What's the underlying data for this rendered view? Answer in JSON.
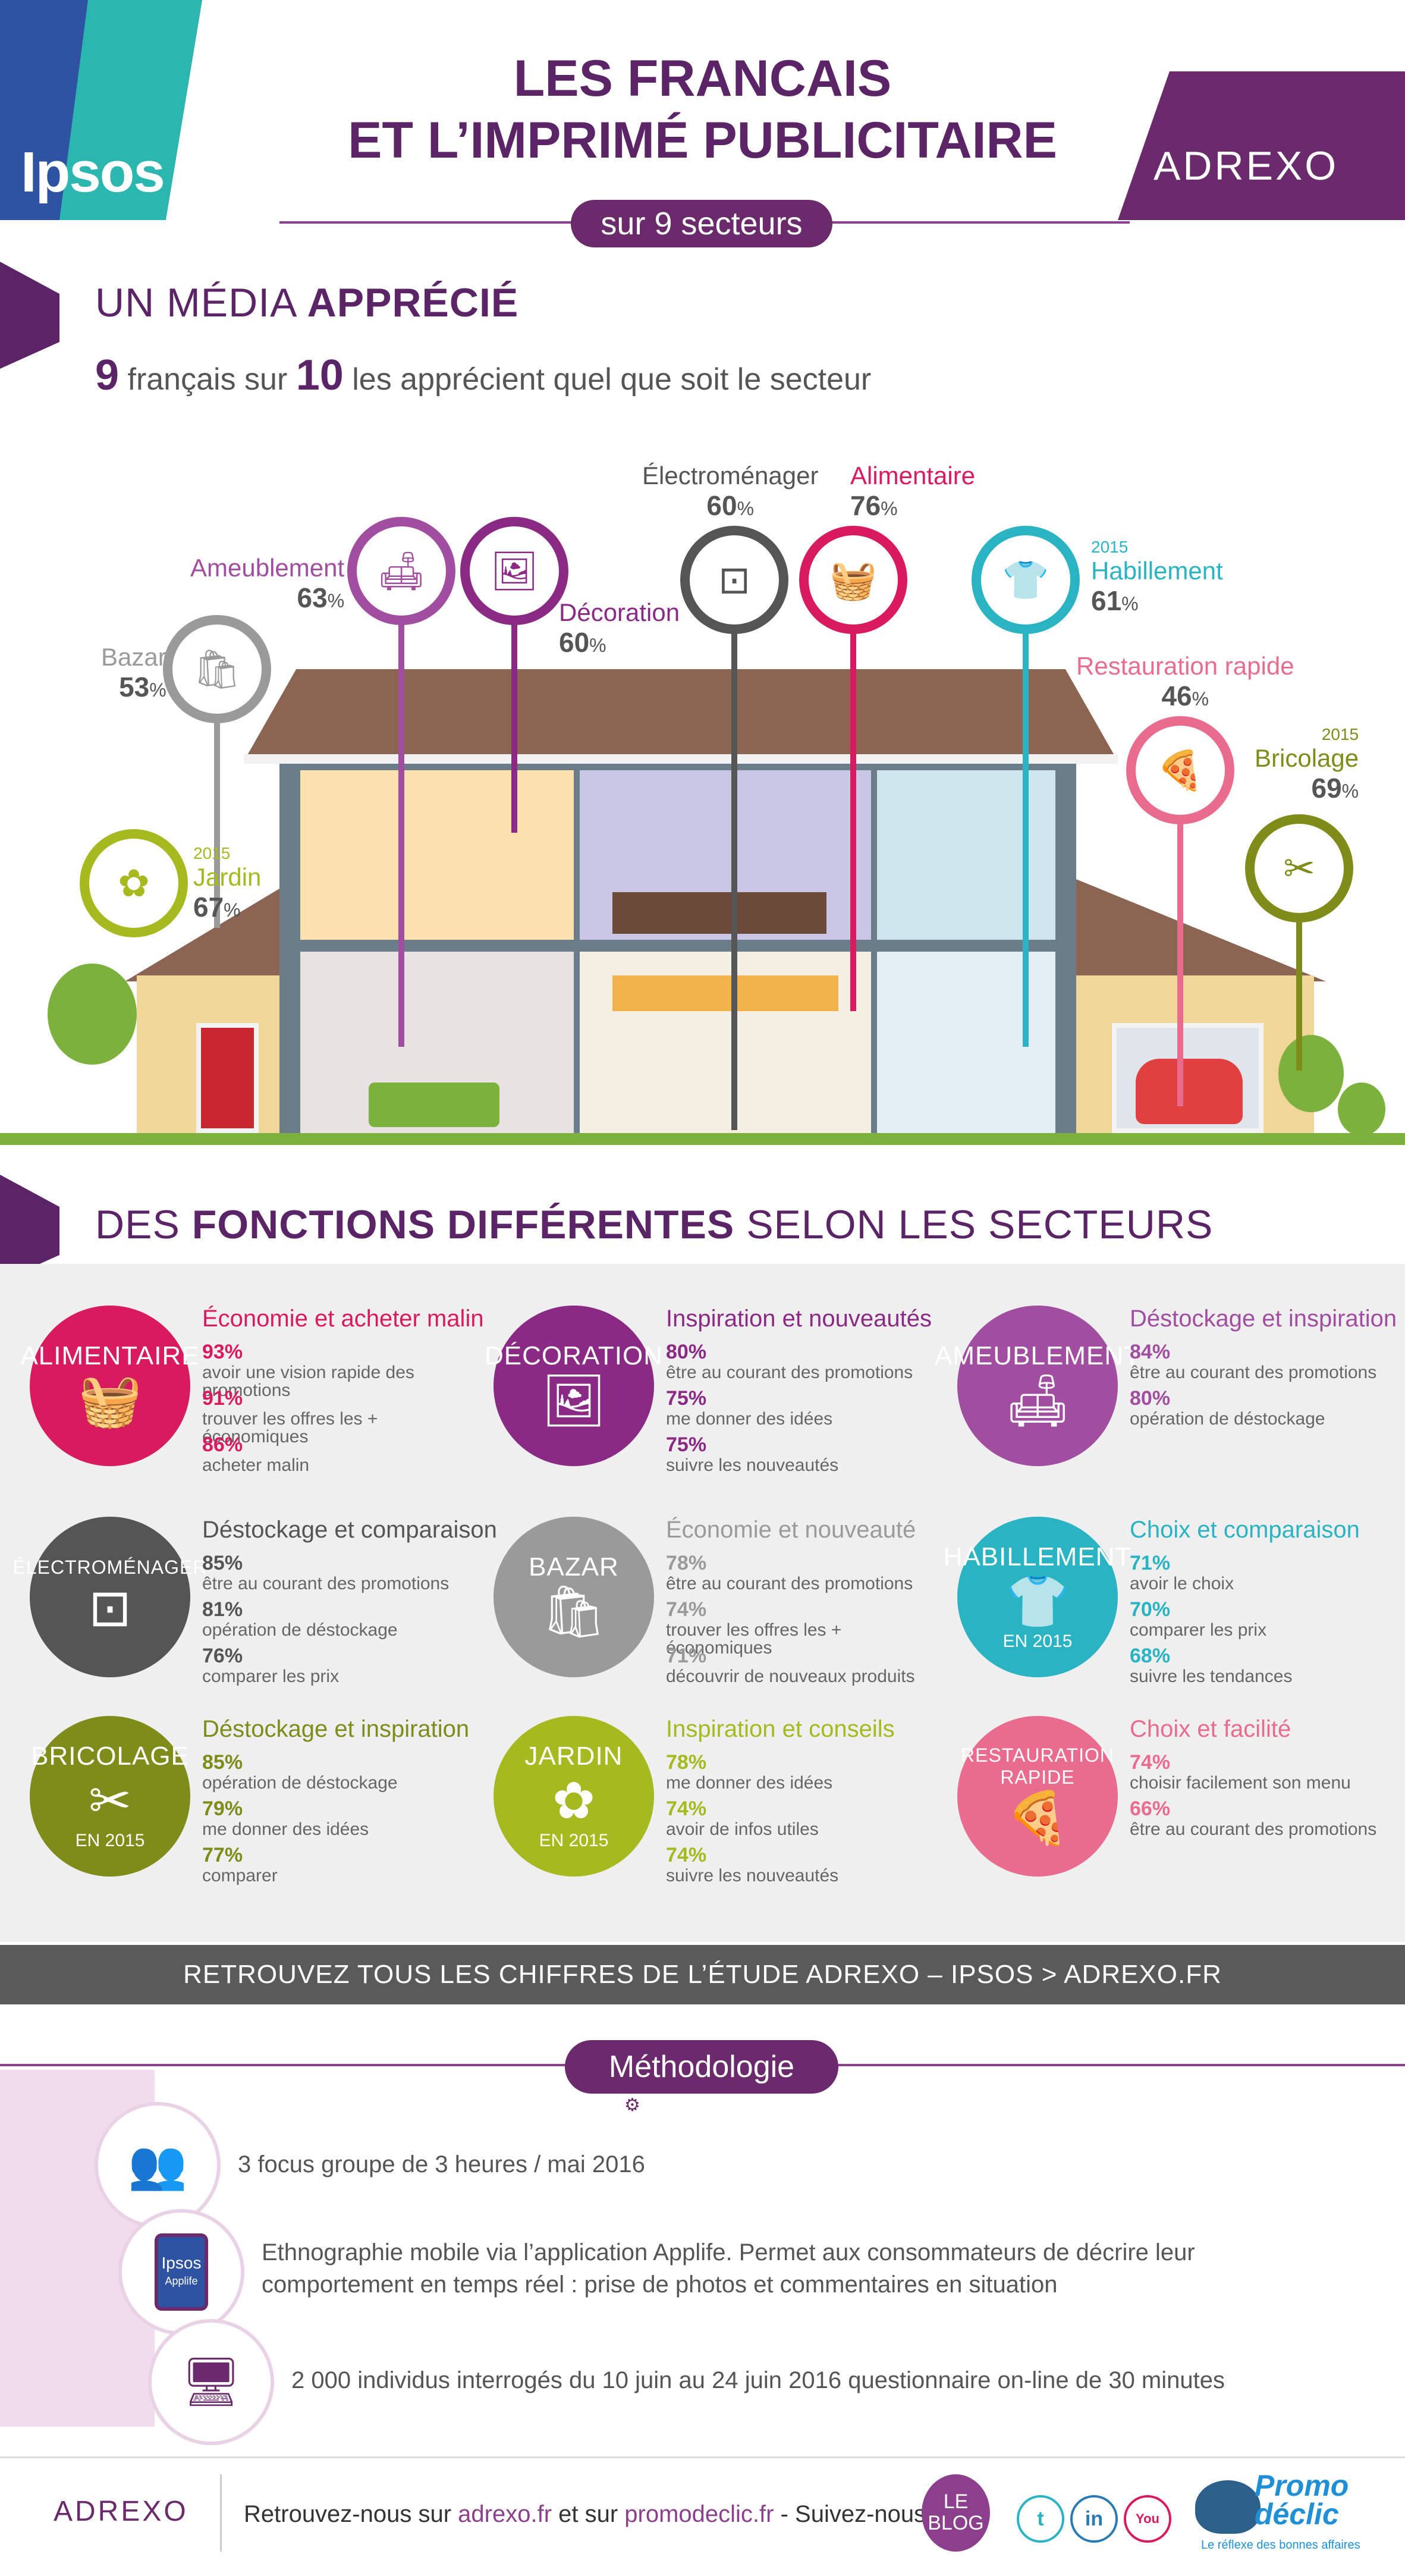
{
  "header": {
    "ipsos_logo": "Ipsos",
    "title_line1": "LES FRANCAIS",
    "title_line2": "ET L’IMPRIMÉ PUBLICITAIRE",
    "subtitle": "sur 9 secteurs",
    "adrexo_logo": "ADREXO"
  },
  "section1": {
    "title_plain": "UN MÉDIA ",
    "title_bold": "APPRÉCIÉ",
    "lead_n1": "9",
    "lead_t1": " français sur ",
    "lead_n2": "10",
    "lead_t2": " les apprécient quel que soit le secteur"
  },
  "house_sectors": [
    {
      "id": "bazar",
      "year": "",
      "name": "Bazar",
      "pct": "53",
      "color": "#9a9a9a",
      "icon": "bag-icon",
      "glyph": "🛍"
    },
    {
      "id": "ameublement",
      "year": "",
      "name": "Ameublement",
      "pct": "63",
      "color": "#a24ea0",
      "icon": "armchair-icon",
      "glyph": "🛋"
    },
    {
      "id": "decoration",
      "year": "",
      "name": "Décoration",
      "pct": "60",
      "color": "#8a2a84",
      "icon": "frame-icon",
      "glyph": "🖼"
    },
    {
      "id": "electromenager",
      "year": "",
      "name": "Électroménager",
      "pct": "60",
      "color": "#555555",
      "icon": "washing-machine-icon",
      "glyph": "⊡"
    },
    {
      "id": "alimentaire",
      "year": "",
      "name": "Alimentaire",
      "pct": "76",
      "color": "#d91a5e",
      "icon": "basket-icon",
      "glyph": "🧺"
    },
    {
      "id": "habillement",
      "year": "2015",
      "name": "Habillement",
      "pct": "61",
      "color": "#2ab3c3",
      "icon": "tshirt-icon",
      "glyph": "👕"
    },
    {
      "id": "restauration",
      "year": "",
      "name": "Restauration rapide",
      "pct": "46",
      "color": "#e96c8f",
      "icon": "pizza-icon",
      "glyph": "🍕"
    },
    {
      "id": "bricolage",
      "year": "2015",
      "name": "Bricolage",
      "pct": "69",
      "color": "#7f8c1a",
      "icon": "tools-icon",
      "glyph": "✂"
    },
    {
      "id": "jardin",
      "year": "2015",
      "name": "Jardin",
      "pct": "67",
      "color": "#a6b91f",
      "icon": "flower-icon",
      "glyph": "✿"
    }
  ],
  "section2": {
    "title_plain1": "DES ",
    "title_bold": "FONCTIONS DIFFÉRENTES",
    "title_plain2": " SELON LES SECTEURS"
  },
  "functions": [
    {
      "id": "alimentaire",
      "circle": "ALIMENTAIRE",
      "year": "",
      "color": "#d91a5e",
      "icon": "basket-icon",
      "glyph": "🧺",
      "title": "Économie et acheter malin",
      "stats": [
        {
          "pct": "93%",
          "label": "avoir une vision rapide des promotions"
        },
        {
          "pct": "91%",
          "label": "trouver les offres les + économiques"
        },
        {
          "pct": "86%",
          "label": "acheter malin"
        }
      ]
    },
    {
      "id": "decoration",
      "circle": "DÉCORATION",
      "year": "",
      "color": "#8a2a84",
      "icon": "frame-icon",
      "glyph": "🖼",
      "title": "Inspiration et nouveautés",
      "stats": [
        {
          "pct": "80%",
          "label": "être au courant des promotions"
        },
        {
          "pct": "75%",
          "label": "me donner des idées"
        },
        {
          "pct": "75%",
          "label": "suivre les nouveautés"
        }
      ]
    },
    {
      "id": "ameublement",
      "circle": "AMEUBLEMENT",
      "year": "",
      "color": "#a24ea0",
      "icon": "armchair-icon",
      "glyph": "🛋",
      "title": "Déstockage et inspiration",
      "stats": [
        {
          "pct": "84%",
          "label": "être au courant des promotions"
        },
        {
          "pct": "80%",
          "label": "opération de déstockage"
        }
      ]
    },
    {
      "id": "electromenager",
      "circle": "ÉLECTROMÉNAGER",
      "year": "",
      "color": "#555555",
      "icon": "washing-machine-icon",
      "glyph": "⊡",
      "title": "Déstockage et comparaison",
      "stats": [
        {
          "pct": "85%",
          "label": "être au courant des promotions"
        },
        {
          "pct": "81%",
          "label": "opération de déstockage"
        },
        {
          "pct": "76%",
          "label": "comparer les prix"
        }
      ]
    },
    {
      "id": "bazar",
      "circle": "BAZAR",
      "year": "",
      "color": "#9a9a9a",
      "icon": "bag-icon",
      "glyph": "🛍",
      "title": "Économie et nouveauté",
      "stats": [
        {
          "pct": "78%",
          "label": "être au courant des promotions"
        },
        {
          "pct": "74%",
          "label": "trouver les offres les + économiques"
        },
        {
          "pct": "71%",
          "label": "découvrir de nouveaux produits"
        }
      ]
    },
    {
      "id": "habillement",
      "circle": "HABILLEMENT",
      "year": "EN 2015",
      "color": "#2ab3c3",
      "icon": "tshirt-icon",
      "glyph": "👕",
      "title": "Choix et comparaison",
      "stats": [
        {
          "pct": "71%",
          "label": "avoir le choix"
        },
        {
          "pct": "70%",
          "label": "comparer les prix"
        },
        {
          "pct": "68%",
          "label": "suivre les tendances"
        }
      ]
    },
    {
      "id": "bricolage",
      "circle": "BRICOLAGE",
      "year": "EN 2015",
      "color": "#7f8c1a",
      "icon": "tools-icon",
      "glyph": "✂",
      "title": "Déstockage et inspiration",
      "stats": [
        {
          "pct": "85%",
          "label": "opération de déstockage"
        },
        {
          "pct": "79%",
          "label": "me donner des idées"
        },
        {
          "pct": "77%",
          "label": "comparer"
        }
      ]
    },
    {
      "id": "jardin",
      "circle": "JARDIN",
      "year": "EN 2015",
      "color": "#a6b91f",
      "icon": "flower-icon",
      "glyph": "✿",
      "title": "Inspiration et conseils",
      "stats": [
        {
          "pct": "78%",
          "label": "me donner des idées"
        },
        {
          "pct": "74%",
          "label": "avoir de infos utiles"
        },
        {
          "pct": "74%",
          "label": "suivre les nouveautés"
        }
      ]
    },
    {
      "id": "restauration",
      "circle": "RESTAURATION RAPIDE",
      "year": "",
      "color": "#e96c8f",
      "icon": "pizza-icon",
      "glyph": "🍕",
      "title": "Choix et facilité",
      "stats": [
        {
          "pct": "74%",
          "label": "choisir facilement son menu"
        },
        {
          "pct": "66%",
          "label": "être au courant des promotions"
        }
      ]
    }
  ],
  "banner": "RETROUVEZ TOUS LES CHIFFRES DE L’ÉTUDE ADREXO – IPSOS > ADREXO.FR",
  "methodology": {
    "title": "Méthodologie",
    "items": [
      {
        "icon": "meeting-icon",
        "glyph": "👥",
        "text": "3 focus groupe de 3 heures / mai 2016"
      },
      {
        "icon": "tablet-icon",
        "glyph": "📱",
        "text": "Ethnographie mobile via l’application Applife. Permet aux consommateurs de décrire leur comportement en temps réel : prise de photos et commentaires en situation"
      },
      {
        "icon": "monitor-icon",
        "glyph": "🖥",
        "text": "2 000 individus interrogés du 10 juin au 24 juin 2016 questionnaire on-line de 30 minutes"
      }
    ],
    "tablet_label1": "Ipsos",
    "tablet_label2": "Applife"
  },
  "footer": {
    "adrexo": "ADREXO",
    "t1": "Retrouvez-nous sur ",
    "l1": "adrexo.fr",
    "t2": " et sur ",
    "l2": "promodeclic.fr",
    "t3": " - Suivez-nous sur",
    "blog1": "LE",
    "blog2": "BLOG",
    "social": [
      {
        "icon": "twitter-icon",
        "glyph": "t",
        "color": "#2ab3c3"
      },
      {
        "icon": "linkedin-icon",
        "glyph": "in",
        "color": "#2a7ab3"
      },
      {
        "icon": "youtube-icon",
        "glyph": "You",
        "color": "#d91a5e"
      }
    ],
    "promo1": "Promo",
    "promo2": "déclic",
    "promo3": "Le réflexe des bonnes affaires"
  }
}
